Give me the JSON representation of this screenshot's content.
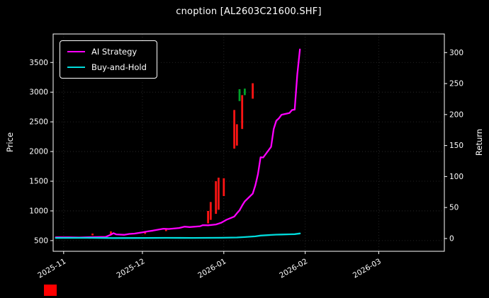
{
  "window": {
    "title": "cnoption [AL2603C21600.SHF]"
  },
  "footer_marker": {
    "color": "#ff0000"
  },
  "chart_data": {
    "type": "line",
    "title": "cnoption [AL2603C21600.SHF]",
    "ylabel_left": "Price",
    "ylabel_right": "Return",
    "background": "#000000",
    "text_color": "#ffffff",
    "grid_color": "#2f2f2f",
    "grid": "on",
    "legend_position": "upper-left",
    "xlim": [
      "2025-10-28",
      "2026-03-26"
    ],
    "ylim_left": [
      320,
      3980
    ],
    "ylim_right": [
      -20.6,
      330
    ],
    "x_ticks": [
      {
        "date": "2025-11-01",
        "label": "2025-11"
      },
      {
        "date": "2025-12-01",
        "label": "2025-12"
      },
      {
        "date": "2026-01-01",
        "label": "2026-01"
      },
      {
        "date": "2026-02-01",
        "label": "2026-02"
      },
      {
        "date": "2026-03-01",
        "label": "2026-03"
      }
    ],
    "y_ticks_left": [
      500,
      1000,
      1500,
      2000,
      2500,
      3000,
      3500
    ],
    "y_ticks_right": [
      0,
      50,
      100,
      150,
      200,
      250,
      300
    ],
    "series": [
      {
        "name": "AI Strategy",
        "color": "#ff00ff",
        "axis": "left",
        "points": [
          [
            "2025-10-29",
            555
          ],
          [
            "2025-11-03",
            555
          ],
          [
            "2025-11-07",
            552
          ],
          [
            "2025-11-12",
            558
          ],
          [
            "2025-11-17",
            562
          ],
          [
            "2025-11-19",
            600
          ],
          [
            "2025-11-20",
            625
          ],
          [
            "2025-11-21",
            605
          ],
          [
            "2025-11-24",
            598
          ],
          [
            "2025-11-26",
            612
          ],
          [
            "2025-11-28",
            618
          ],
          [
            "2025-12-01",
            638
          ],
          [
            "2025-12-03",
            655
          ],
          [
            "2025-12-05",
            668
          ],
          [
            "2025-12-09",
            700
          ],
          [
            "2025-12-11",
            695
          ],
          [
            "2025-12-15",
            712
          ],
          [
            "2025-12-17",
            735
          ],
          [
            "2025-12-19",
            728
          ],
          [
            "2025-12-23",
            742
          ],
          [
            "2025-12-24",
            760
          ],
          [
            "2025-12-26",
            758
          ],
          [
            "2025-12-29",
            772
          ],
          [
            "2025-12-31",
            800
          ],
          [
            "2026-01-02",
            850
          ],
          [
            "2026-01-05",
            905
          ],
          [
            "2026-01-06",
            960
          ],
          [
            "2026-01-07",
            1010
          ],
          [
            "2026-01-08",
            1090
          ],
          [
            "2026-01-09",
            1160
          ],
          [
            "2026-01-12",
            1290
          ],
          [
            "2026-01-13",
            1430
          ],
          [
            "2026-01-14",
            1620
          ],
          [
            "2026-01-15",
            1905
          ],
          [
            "2026-01-16",
            1900
          ],
          [
            "2026-01-19",
            2080
          ],
          [
            "2026-01-20",
            2380
          ],
          [
            "2026-01-21",
            2520
          ],
          [
            "2026-01-22",
            2560
          ],
          [
            "2026-01-23",
            2620
          ],
          [
            "2026-01-26",
            2650
          ],
          [
            "2026-01-27",
            2700
          ],
          [
            "2026-01-28",
            2705
          ],
          [
            "2026-01-29",
            3300
          ],
          [
            "2026-01-30",
            3720
          ]
        ]
      },
      {
        "name": "Buy-and-Hold",
        "color": "#00dcdc",
        "axis": "left",
        "points": [
          [
            "2025-10-29",
            545
          ],
          [
            "2025-11-10",
            546
          ],
          [
            "2025-11-20",
            543
          ],
          [
            "2025-12-01",
            544
          ],
          [
            "2025-12-10",
            546
          ],
          [
            "2025-12-20",
            545
          ],
          [
            "2025-12-31",
            548
          ],
          [
            "2026-01-06",
            552
          ],
          [
            "2026-01-09",
            560
          ],
          [
            "2026-01-13",
            572
          ],
          [
            "2026-01-15",
            585
          ],
          [
            "2026-01-19",
            595
          ],
          [
            "2026-01-21",
            600
          ],
          [
            "2026-01-23",
            602
          ],
          [
            "2026-01-26",
            606
          ],
          [
            "2026-01-28",
            608
          ],
          [
            "2026-01-30",
            620
          ]
        ]
      }
    ],
    "candles": [
      {
        "date": "2025-11-12",
        "low": 588,
        "high": 618,
        "color": "#ff1414"
      },
      {
        "date": "2025-11-19",
        "low": 598,
        "high": 655,
        "color": "#ff1414"
      },
      {
        "date": "2025-12-02",
        "low": 612,
        "high": 640,
        "color": "#ff1414"
      },
      {
        "date": "2025-12-10",
        "low": 660,
        "high": 692,
        "color": "#ff1414"
      },
      {
        "date": "2025-12-26",
        "low": 790,
        "high": 1000,
        "color": "#ff1414"
      },
      {
        "date": "2025-12-27",
        "low": 850,
        "high": 1150,
        "color": "#ff1414"
      },
      {
        "date": "2025-12-29",
        "low": 950,
        "high": 1500,
        "color": "#ff1414"
      },
      {
        "date": "2025-12-30",
        "low": 1020,
        "high": 1560,
        "color": "#ff1414"
      },
      {
        "date": "2026-01-01",
        "low": 1250,
        "high": 1550,
        "color": "#ff1414"
      },
      {
        "date": "2026-01-05",
        "low": 2050,
        "high": 2700,
        "color": "#ff1414"
      },
      {
        "date": "2026-01-06",
        "low": 2100,
        "high": 2460,
        "color": "#ff1414"
      },
      {
        "date": "2026-01-07",
        "low": 2850,
        "high": 3050,
        "color": "#00a028"
      },
      {
        "date": "2026-01-08",
        "low": 2380,
        "high": 2950,
        "color": "#ff1414"
      },
      {
        "date": "2026-01-09",
        "low": 2950,
        "high": 3060,
        "color": "#00a028"
      },
      {
        "date": "2026-01-12",
        "low": 2890,
        "high": 3150,
        "color": "#ff1414"
      }
    ]
  }
}
